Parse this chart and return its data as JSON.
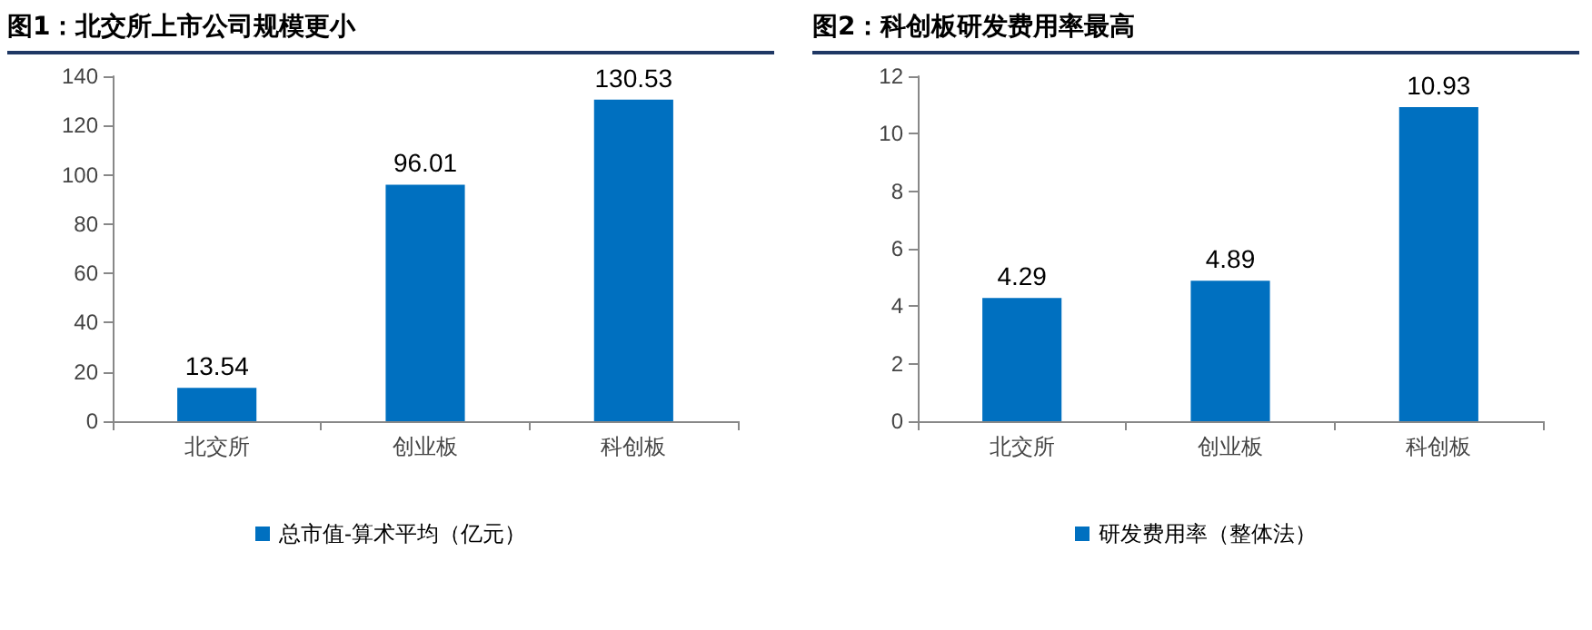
{
  "chart_data": [
    {
      "type": "bar",
      "title": "图1：北交所上市公司规模更小",
      "categories": [
        "北交所",
        "创业板",
        "科创板"
      ],
      "series": [
        {
          "name": "总市值-算术平均（亿元）",
          "color": "#0070c0",
          "values": [
            13.54,
            96.01,
            130.53
          ]
        }
      ],
      "ylim": [
        0,
        140
      ],
      "yticks": [
        0,
        20,
        40,
        60,
        80,
        100,
        120,
        140
      ],
      "grid": false,
      "legend": "bottom",
      "data_labels": true
    },
    {
      "type": "bar",
      "title": "图2：科创板研发费用率最高",
      "categories": [
        "北交所",
        "创业板",
        "科创板"
      ],
      "series": [
        {
          "name": "研发费用率（整体法）",
          "color": "#0070c0",
          "values": [
            4.29,
            4.89,
            10.93
          ]
        }
      ],
      "ylim": [
        0,
        12
      ],
      "yticks": [
        0,
        2,
        4,
        6,
        8,
        10,
        12
      ],
      "grid": false,
      "legend": "bottom",
      "data_labels": true
    }
  ]
}
